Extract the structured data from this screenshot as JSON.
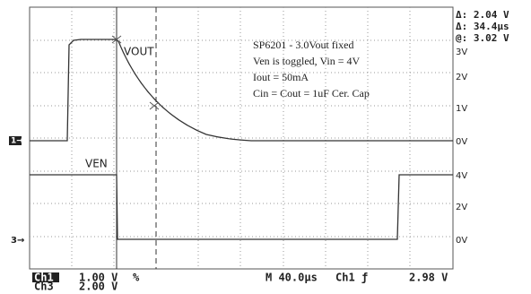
{
  "readout": {
    "delta_v": "Δ: 2.04 V",
    "delta_t": "Δ: 34.4μs",
    "at_v": "@: 3.02 V"
  },
  "scale_ch1": [
    "3V",
    "2V",
    "1V",
    "0V"
  ],
  "scale_ch3": [
    "4V",
    "2V",
    "0V"
  ],
  "markers": {
    "ch1": "1→",
    "ch3": "3→"
  },
  "trace_labels": {
    "vout": "VOUT",
    "ven": "VEN"
  },
  "notes": [
    "SP6201 - 3.0Vout fixed",
    "Ven is toggled, Vin = 4V",
    "Iout = 50mA",
    "Cin = Cout = 1uF Cer. Cap"
  ],
  "status": {
    "ch1": "Ch1",
    "ch1_scale": "1.00 V",
    "ch1_bw": "%",
    "timebase": "M 40.0μs",
    "trigger_src": "Ch1 ƒ",
    "trigger_level": "2.98 V",
    "ch3": "Ch3",
    "ch3_scale": "2.00 V"
  }
}
